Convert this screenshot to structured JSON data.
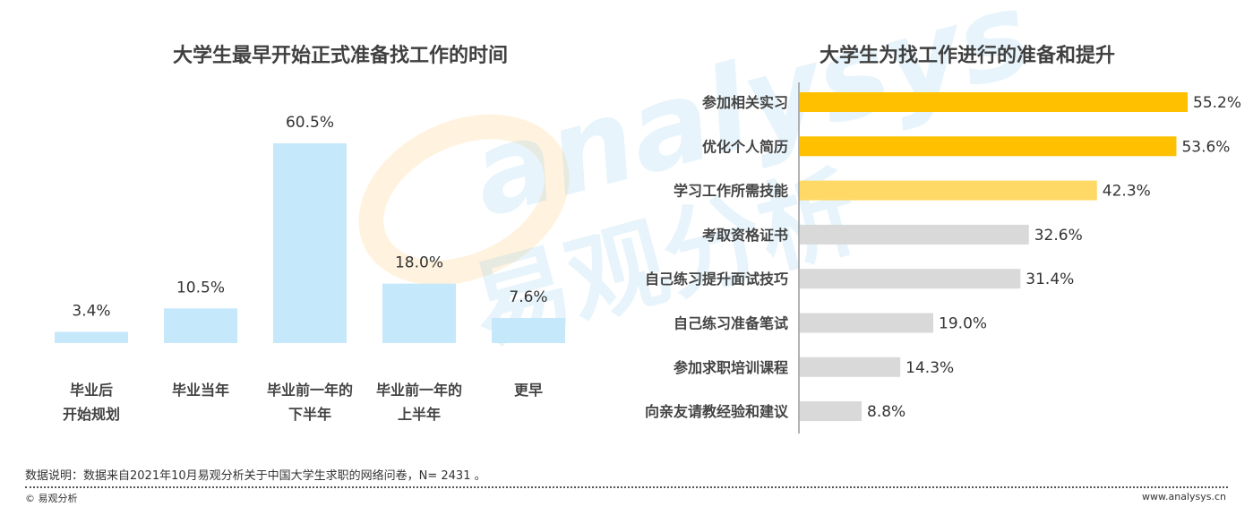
{
  "footer": {
    "note": "数据说明：数据来自2021年10月易观分析关于中国大学生求职的网络问卷，N= 2431 。",
    "copyright": "© 易观分析",
    "website": "www.analysys.cn"
  },
  "watermark": {
    "latin": "analysys",
    "cjk": "易观分析"
  },
  "colors": {
    "left_bar": "#c5e8fb",
    "right_top": "#ffc000",
    "right_mid": "#ffd966",
    "right_rest": "#d9d9d9",
    "axis": "#999999"
  },
  "chart_data": [
    {
      "type": "bar",
      "title": "大学生最早开始正式准备找工作的时间",
      "categories": [
        [
          "毕业后",
          "开始规划"
        ],
        [
          "毕业当年"
        ],
        [
          "毕业前一年的",
          "下半年"
        ],
        [
          "毕业前一年的",
          "上半年"
        ],
        [
          "更早"
        ]
      ],
      "values": [
        3.4,
        10.5,
        60.5,
        18.0,
        7.6
      ],
      "value_labels": [
        "3.4%",
        "10.5%",
        "60.5%",
        "18.0%",
        "7.6%"
      ],
      "unit": "%",
      "ylim": [
        0,
        60.5
      ]
    },
    {
      "type": "bar",
      "orientation": "horizontal",
      "title": "大学生为找工作进行的准备和提升",
      "categories": [
        "参加相关实习",
        "优化个人简历",
        "学习工作所需技能",
        "考取资格证书",
        "自己练习提升面试技巧",
        "自己练习准备笔试",
        "参加求职培训课程",
        "向亲友请教经验和建议"
      ],
      "values": [
        55.2,
        53.6,
        42.3,
        32.6,
        31.4,
        19.0,
        14.3,
        8.8
      ],
      "value_labels": [
        "55.2%",
        "53.6%",
        "42.3%",
        "32.6%",
        "31.4%",
        "19.0%",
        "14.3%",
        "8.8%"
      ],
      "unit": "%",
      "xlim": [
        0,
        55.2
      ],
      "bar_color_keys": [
        "right_top",
        "right_top",
        "right_mid",
        "right_rest",
        "right_rest",
        "right_rest",
        "right_rest",
        "right_rest"
      ]
    }
  ]
}
